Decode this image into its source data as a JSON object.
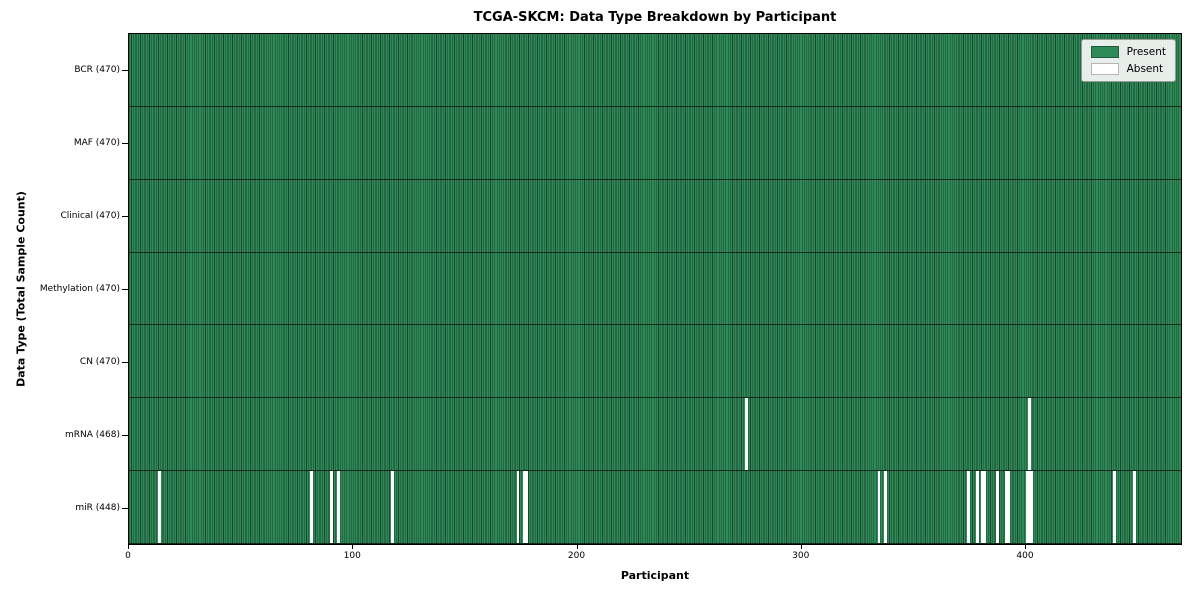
{
  "chart_data": {
    "type": "heatmap",
    "title": "TCGA-SKCM: Data Type Breakdown by Participant",
    "xlabel": "Participant",
    "ylabel": "Data Type (Total Sample Count)",
    "n_participants": 470,
    "x_ticks": [
      0,
      100,
      200,
      300,
      400
    ],
    "xlim": [
      0,
      470
    ],
    "grid": false,
    "legend_position": "upper right",
    "legend": [
      {
        "label": "Present",
        "color": "#2e8b57"
      },
      {
        "label": "Absent",
        "color": "#ffffff"
      }
    ],
    "rows": [
      {
        "label": "BCR (470)",
        "total": 470,
        "absent": []
      },
      {
        "label": "MAF (470)",
        "total": 470,
        "absent": []
      },
      {
        "label": "Clinical (470)",
        "total": 470,
        "absent": []
      },
      {
        "label": "Methylation (470)",
        "total": 470,
        "absent": []
      },
      {
        "label": "CN (470)",
        "total": 470,
        "absent": []
      },
      {
        "label": "mRNA (468)",
        "total": 468,
        "absent": [
          275,
          401
        ]
      },
      {
        "label": "miR (448)",
        "total": 448,
        "absent": [
          13,
          81,
          90,
          93,
          117,
          173,
          176,
          177,
          334,
          337,
          374,
          378,
          380,
          381,
          387,
          391,
          392,
          400,
          401,
          402,
          439,
          448
        ]
      }
    ],
    "colors": {
      "present": "#2e8b57",
      "absent": "#ffffff",
      "bar_edge": "#1a4430",
      "separator": "#10291b",
      "spine": "#000000",
      "background": "#ffffff"
    }
  }
}
